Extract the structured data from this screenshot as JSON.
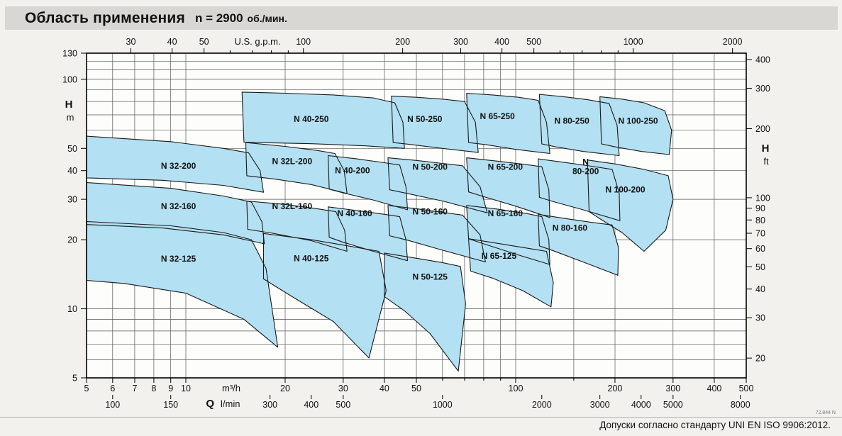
{
  "page": {
    "title": "Область применения",
    "speed": "n = 2900",
    "speed_unit": "об./мин.",
    "footer_note": "Допуски согласно стандарту UNI EN ISO 9906:2012.",
    "drawing_code": "72.844 N"
  },
  "colors": {
    "page_bg": "#f2f1ed",
    "title_bar_bg": "#d8d7d3",
    "plot_bg": "#fdfdfc",
    "region_fill": "#b3e0f2",
    "region_stroke": "#1a1a1a",
    "grid_line": "#555555",
    "frame": "#000000"
  },
  "chart_data": {
    "type": "area",
    "scale": "log-log",
    "title": "Область применения",
    "subtitle": "n = 2900 об./мин.",
    "q_range_m3h": [
      5,
      500
    ],
    "h_range_m": [
      5,
      130
    ],
    "axes": {
      "top_usgpm": {
        "unit_label": "U.S. g.p.m.",
        "ticks": [
          30,
          40,
          50,
          100,
          200,
          300,
          400,
          500,
          1000,
          2000
        ],
        "minor_ticks": [
          60,
          70,
          80,
          90,
          600,
          700,
          800,
          900
        ]
      },
      "bottom_m3h": {
        "unit_label": "m³/h",
        "ticks": [
          5,
          6,
          7,
          8,
          9,
          10,
          20,
          30,
          40,
          50,
          100,
          200,
          300,
          400,
          500
        ],
        "minor_ticks": [
          60,
          70,
          80,
          90,
          150
        ]
      },
      "bottom_lmin": {
        "flow_symbol": "Q",
        "unit_label": "l/min",
        "ticks": [
          100,
          150,
          300,
          400,
          500,
          1000,
          2000,
          3000,
          4000,
          5000,
          8000
        ]
      },
      "left_m": {
        "head_symbol": "H",
        "unit_label": "m",
        "ticks": [
          5,
          10,
          20,
          30,
          40,
          50,
          100,
          130
        ]
      },
      "right_ft": {
        "head_symbol": "H",
        "unit_label": "ft",
        "ticks": [
          20,
          30,
          40,
          50,
          60,
          70,
          80,
          90,
          100,
          200,
          300,
          400
        ]
      }
    },
    "grid": {
      "x_m3h": [
        5,
        6,
        7,
        8,
        9,
        10,
        20,
        30,
        40,
        50,
        60,
        70,
        80,
        90,
        100,
        150,
        200,
        300,
        400,
        500
      ],
      "y_m": [
        5,
        6,
        7,
        8,
        9,
        10,
        20,
        30,
        40,
        50,
        60,
        70,
        80,
        90,
        100,
        110,
        120,
        130
      ]
    },
    "regions": [
      {
        "name": "N 32-125",
        "label_lines": [
          "N 32-125"
        ],
        "label_at": [
          9.5,
          16.5
        ],
        "points": [
          [
            5,
            24
          ],
          [
            9,
            23
          ],
          [
            13,
            21.5
          ],
          [
            15.8,
            20
          ],
          [
            17.5,
            15
          ],
          [
            19,
            6.8
          ],
          [
            15,
            9
          ],
          [
            10,
            11.7
          ],
          [
            6.5,
            12.9
          ],
          [
            5,
            13.3
          ]
        ]
      },
      {
        "name": "N 40-125",
        "label_lines": [
          "N 40-125"
        ],
        "label_at": [
          24,
          16.6
        ],
        "points": [
          [
            17.2,
            21.3
          ],
          [
            24,
            20
          ],
          [
            31,
            18.8
          ],
          [
            38.5,
            17.8
          ],
          [
            40.5,
            12
          ],
          [
            35.9,
            6.1
          ],
          [
            28,
            8.8
          ],
          [
            21,
            11.3
          ],
          [
            17.2,
            13.5
          ]
        ]
      },
      {
        "name": "N 50-125",
        "label_lines": [
          "N 50-125"
        ],
        "label_at": [
          55,
          13.8
        ],
        "points": [
          [
            40,
            17.5
          ],
          [
            50,
            16.6
          ],
          [
            60,
            15.9
          ],
          [
            68,
            15.3
          ],
          [
            70.5,
            10.5
          ],
          [
            67,
            5.35
          ],
          [
            55,
            7.8
          ],
          [
            46,
            9.8
          ],
          [
            40,
            11.3
          ]
        ]
      },
      {
        "name": "N 65-125",
        "label_lines": [
          "N 65-125"
        ],
        "label_at": [
          89,
          17
        ],
        "points": [
          [
            72,
            20.2
          ],
          [
            90,
            19.2
          ],
          [
            110,
            18.3
          ],
          [
            124,
            17.8
          ],
          [
            130,
            13
          ],
          [
            128,
            10.2
          ],
          [
            105,
            12
          ],
          [
            85,
            13.6
          ],
          [
            73,
            14.6
          ]
        ]
      },
      {
        "name": "N 32-160",
        "label_lines": [
          "N 32-160"
        ],
        "label_at": [
          9.5,
          28
        ],
        "points": [
          [
            5,
            35.5
          ],
          [
            9,
            33.5
          ],
          [
            13,
            31
          ],
          [
            15.8,
            29.2
          ],
          [
            17,
            24
          ],
          [
            17.3,
            19.2
          ],
          [
            13,
            21
          ],
          [
            8.5,
            22.5
          ],
          [
            5,
            23.3
          ]
        ]
      },
      {
        "name": "N 32L-160",
        "label_lines": [
          "N 32L-160"
        ],
        "label_at": [
          21,
          28
        ],
        "points": [
          [
            15.3,
            29.5
          ],
          [
            20,
            28.5
          ],
          [
            25,
            27.3
          ],
          [
            28.5,
            26.5
          ],
          [
            30.3,
            22
          ],
          [
            30.8,
            17.8
          ],
          [
            24,
            19.8
          ],
          [
            18.5,
            21.3
          ],
          [
            15.4,
            22.2
          ]
        ]
      },
      {
        "name": "N 40-160",
        "label_lines": [
          "N 40-160"
        ],
        "label_at": [
          32.5,
          26
        ],
        "points": [
          [
            27,
            27.8
          ],
          [
            33,
            26.8
          ],
          [
            40,
            25.8
          ],
          [
            44.5,
            25.2
          ],
          [
            46.5,
            20
          ],
          [
            47,
            16.2
          ],
          [
            37,
            17.8
          ],
          [
            30,
            19.5
          ],
          [
            27.2,
            20.5
          ]
        ]
      },
      {
        "name": "N 50-160",
        "label_lines": [
          "N 50-160"
        ],
        "label_at": [
          55,
          26.5
        ],
        "points": [
          [
            41,
            28.2
          ],
          [
            50,
            27.3
          ],
          [
            60,
            26.3
          ],
          [
            69,
            25.6
          ],
          [
            78,
            21
          ],
          [
            81,
            16
          ],
          [
            60,
            18
          ],
          [
            47,
            19.9
          ],
          [
            41.5,
            20.8
          ]
        ]
      },
      {
        "name": "N 65-160",
        "label_lines": [
          "N 65-160"
        ],
        "label_at": [
          93,
          26
        ],
        "points": [
          [
            71,
            28.2
          ],
          [
            88,
            27.2
          ],
          [
            108,
            26
          ],
          [
            120,
            25.2
          ],
          [
            126,
            20
          ],
          [
            127,
            15.6
          ],
          [
            100,
            17.3
          ],
          [
            80,
            19.2
          ],
          [
            72,
            20.2
          ]
        ]
      },
      {
        "name": "N 80-160",
        "label_lines": [
          "N 80-160"
        ],
        "label_at": [
          146,
          22.5
        ],
        "points": [
          [
            117,
            25.8
          ],
          [
            140,
            24.8
          ],
          [
            170,
            23.8
          ],
          [
            196,
            23.2
          ],
          [
            205,
            18.5
          ],
          [
            204,
            14
          ],
          [
            160,
            16
          ],
          [
            130,
            17.9
          ],
          [
            118,
            18.8
          ]
        ]
      },
      {
        "name": "N 32-200",
        "label_lines": [
          "N 32-200"
        ],
        "label_at": [
          9.5,
          42
        ],
        "points": [
          [
            5,
            56.5
          ],
          [
            9,
            53.5
          ],
          [
            13,
            50
          ],
          [
            15.5,
            47.8
          ],
          [
            16.8,
            40
          ],
          [
            17.2,
            32.2
          ],
          [
            13,
            34.5
          ],
          [
            8.5,
            36.3
          ],
          [
            5,
            37.2
          ]
        ]
      },
      {
        "name": "N 32L-200",
        "label_lines": [
          "N 32L-200"
        ],
        "label_at": [
          21,
          44
        ],
        "points": [
          [
            15.2,
            53
          ],
          [
            20,
            51
          ],
          [
            25,
            49
          ],
          [
            28.3,
            47.5
          ],
          [
            30.2,
            40
          ],
          [
            30.8,
            31.8
          ],
          [
            24,
            34.8
          ],
          [
            18.5,
            36.8
          ],
          [
            15.3,
            38
          ]
        ]
      },
      {
        "name": "N 40-200",
        "label_lines": [
          "N 40-200"
        ],
        "label_at": [
          32,
          40
        ],
        "points": [
          [
            27,
            46.5
          ],
          [
            33,
            45
          ],
          [
            40,
            43.3
          ],
          [
            44.5,
            42.3
          ],
          [
            46.5,
            34
          ],
          [
            47,
            27
          ],
          [
            37,
            29.8
          ],
          [
            30,
            32
          ],
          [
            27.2,
            33.2
          ]
        ]
      },
      {
        "name": "N 50-200",
        "label_lines": [
          "N 50-200"
        ],
        "label_at": [
          55,
          41.5
        ],
        "points": [
          [
            41,
            45.5
          ],
          [
            50,
            44.3
          ],
          [
            60,
            43
          ],
          [
            69,
            42
          ],
          [
            78,
            34
          ],
          [
            82,
            26.2
          ],
          [
            60,
            29.5
          ],
          [
            47,
            31.8
          ],
          [
            41.5,
            33
          ]
        ]
      },
      {
        "name": "N 65-200",
        "label_lines": [
          "N 65-200"
        ],
        "label_at": [
          93,
          41.5
        ],
        "points": [
          [
            71,
            45.5
          ],
          [
            88,
            44
          ],
          [
            108,
            42.5
          ],
          [
            120,
            41.6
          ],
          [
            126,
            33
          ],
          [
            127,
            25
          ],
          [
            100,
            28
          ],
          [
            80,
            30.8
          ],
          [
            72,
            32.3
          ]
        ]
      },
      {
        "name": "N 80-200",
        "label_lines": [
          "N",
          "80-200"
        ],
        "label_at": [
          163,
          41.5
        ],
        "points": [
          [
            117,
            45
          ],
          [
            140,
            43.5
          ],
          [
            170,
            41.8
          ],
          [
            196,
            40.5
          ],
          [
            206,
            32
          ],
          [
            207,
            24.2
          ],
          [
            160,
            27
          ],
          [
            130,
            29.3
          ],
          [
            118,
            30.6
          ]
        ]
      },
      {
        "name": "N 100-200",
        "label_lines": [
          "N 100-200"
        ],
        "label_at": [
          215,
          33
        ],
        "points": [
          [
            165,
            44.5
          ],
          [
            200,
            42.8
          ],
          [
            245,
            40.5
          ],
          [
            290,
            38
          ],
          [
            300,
            30
          ],
          [
            285,
            22
          ],
          [
            245,
            17.8
          ],
          [
            210,
            21.5
          ],
          [
            180,
            24.7
          ],
          [
            167,
            26.5
          ]
        ]
      },
      {
        "name": "N 40-250",
        "label_lines": [
          "N 40-250"
        ],
        "label_at": [
          24,
          67
        ],
        "points": [
          [
            14.8,
            88
          ],
          [
            20,
            87
          ],
          [
            28,
            85.5
          ],
          [
            37,
            83
          ],
          [
            43,
            79
          ],
          [
            45.5,
            65
          ],
          [
            46,
            50
          ],
          [
            35,
            51.3
          ],
          [
            24,
            52.4
          ],
          [
            15,
            53.2
          ]
        ]
      },
      {
        "name": "N 50-250",
        "label_lines": [
          "N 50-250"
        ],
        "label_at": [
          53,
          67
        ],
        "points": [
          [
            42,
            84.5
          ],
          [
            50,
            83.5
          ],
          [
            60,
            82
          ],
          [
            70,
            80
          ],
          [
            75.5,
            65
          ],
          [
            77,
            48
          ],
          [
            60,
            50
          ],
          [
            48,
            52
          ],
          [
            42.5,
            53
          ]
        ]
      },
      {
        "name": "N 65-250",
        "label_lines": [
          "N 65-250"
        ],
        "label_at": [
          88,
          69
        ],
        "points": [
          [
            71,
            87
          ],
          [
            85,
            85.5
          ],
          [
            102,
            83.5
          ],
          [
            117,
            81
          ],
          [
            124,
            65
          ],
          [
            127,
            47.5
          ],
          [
            100,
            49.5
          ],
          [
            82,
            51.8
          ],
          [
            72,
            53
          ]
        ]
      },
      {
        "name": "N 80-250",
        "label_lines": [
          "N 80-250"
        ],
        "label_at": [
          148,
          66
        ],
        "points": [
          [
            118,
            86
          ],
          [
            140,
            84
          ],
          [
            165,
            81.5
          ],
          [
            192,
            78.5
          ],
          [
            203,
            63
          ],
          [
            206,
            46.5
          ],
          [
            160,
            48.5
          ],
          [
            132,
            50.8
          ],
          [
            120,
            52.3
          ]
        ]
      },
      {
        "name": "N 100-250",
        "label_lines": [
          "N 100-250"
        ],
        "label_at": [
          235,
          66
        ],
        "points": [
          [
            180,
            84
          ],
          [
            210,
            82
          ],
          [
            245,
            79
          ],
          [
            283,
            73
          ],
          [
            297,
            60
          ],
          [
            292,
            47
          ],
          [
            240,
            48.5
          ],
          [
            200,
            50.8
          ],
          [
            182,
            52.3
          ]
        ]
      }
    ]
  }
}
